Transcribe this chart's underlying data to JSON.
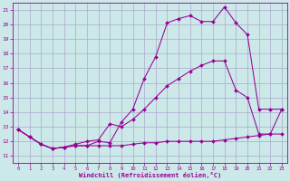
{
  "xlabel": "Windchill (Refroidissement éolien,°C)",
  "background_color": "#cce8e8",
  "grid_color": "#aaaacc",
  "line_color": "#990099",
  "x_ticks": [
    0,
    1,
    2,
    3,
    4,
    5,
    6,
    7,
    8,
    9,
    10,
    11,
    12,
    13,
    14,
    15,
    16,
    17,
    18,
    19,
    20,
    21,
    22,
    23
  ],
  "y_ticks": [
    11,
    12,
    13,
    14,
    15,
    16,
    17,
    18,
    19,
    20,
    21
  ],
  "xlim": [
    -0.5,
    23.5
  ],
  "ylim": [
    10.5,
    21.5
  ],
  "line1_x": [
    0,
    1,
    2,
    3,
    4,
    5,
    6,
    7,
    8,
    9,
    10,
    11,
    12,
    13,
    14,
    15,
    16,
    17,
    18,
    19,
    20,
    21,
    22,
    23
  ],
  "line1_y": [
    12.8,
    12.3,
    11.8,
    11.5,
    11.6,
    11.7,
    11.7,
    12.0,
    11.9,
    13.3,
    14.2,
    16.3,
    17.8,
    20.1,
    20.4,
    20.6,
    20.2,
    20.2,
    21.2,
    20.1,
    19.3,
    14.2,
    14.2,
    14.2
  ],
  "line2_x": [
    0,
    1,
    2,
    3,
    4,
    5,
    6,
    7,
    8,
    9,
    10,
    11,
    12,
    13,
    14,
    15,
    16,
    17,
    18,
    19,
    20,
    21,
    22,
    23
  ],
  "line2_y": [
    12.8,
    12.3,
    11.8,
    11.5,
    11.6,
    11.8,
    12.0,
    12.1,
    13.2,
    13.0,
    13.5,
    14.2,
    15.0,
    15.8,
    16.3,
    16.8,
    17.2,
    17.5,
    17.5,
    15.5,
    15.0,
    12.5,
    12.5,
    14.2
  ],
  "line3_x": [
    0,
    1,
    2,
    3,
    4,
    5,
    6,
    7,
    8,
    9,
    10,
    11,
    12,
    13,
    14,
    15,
    16,
    17,
    18,
    19,
    20,
    21,
    22,
    23
  ],
  "line3_y": [
    12.8,
    12.3,
    11.8,
    11.5,
    11.6,
    11.7,
    11.7,
    11.7,
    11.7,
    11.7,
    11.8,
    11.9,
    11.9,
    12.0,
    12.0,
    12.0,
    12.0,
    12.0,
    12.1,
    12.2,
    12.3,
    12.4,
    12.5,
    12.5
  ]
}
